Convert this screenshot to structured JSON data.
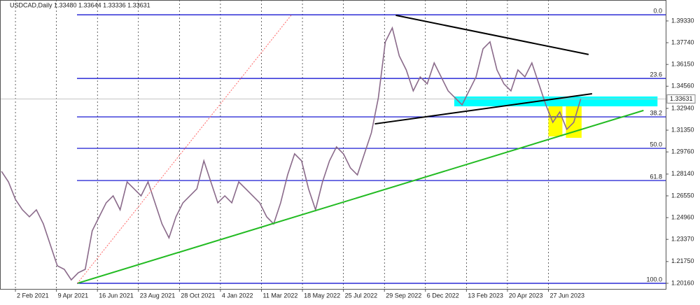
{
  "chart_data": {
    "type": "line",
    "title": "USDCAD,Daily 1.33480 1.33644 1.33336 1.33631",
    "x": [
      -16,
      -8,
      0,
      8,
      16,
      24,
      32,
      40,
      48,
      56,
      64,
      72,
      80,
      88,
      96,
      104,
      112,
      120,
      128,
      136,
      144,
      152,
      160,
      168,
      176,
      184,
      192,
      200,
      208,
      216,
      224,
      232,
      240,
      248,
      256,
      264,
      272,
      280,
      288,
      296,
      304,
      312,
      320,
      328,
      336,
      344,
      352,
      360,
      368,
      376,
      384,
      392,
      400,
      408,
      416,
      424,
      432,
      440,
      448,
      456,
      464,
      472,
      480,
      488,
      496,
      504,
      512,
      520,
      528,
      536,
      544,
      552,
      560,
      568,
      576,
      584,
      592,
      600,
      608,
      616,
      624,
      632,
      640,
      648
    ],
    "series": [
      {
        "name": "USDCAD",
        "color": "#8a6a8a",
        "values": [
          1.2834,
          1.2757,
          1.2629,
          1.2553,
          1.2502,
          1.2553,
          1.245,
          1.2297,
          1.2144,
          1.2118,
          1.2041,
          1.2093,
          1.2118,
          1.2399,
          1.2502,
          1.2604,
          1.2655,
          1.2553,
          1.2757,
          1.2706,
          1.2655,
          1.2757,
          1.2604,
          1.245,
          1.2348,
          1.2502,
          1.2604,
          1.2655,
          1.2706,
          1.2911,
          1.2757,
          1.2604,
          1.2655,
          1.2604,
          1.2757,
          1.2706,
          1.2655,
          1.2604,
          1.2502,
          1.245,
          1.2604,
          1.2808,
          1.2962,
          1.2911,
          1.2706,
          1.2553,
          1.2757,
          1.2911,
          1.3013,
          1.2962,
          1.2859,
          1.2808,
          1.2962,
          1.3115,
          1.3371,
          1.378,
          1.3882,
          1.3677,
          1.3575,
          1.3422,
          1.3524,
          1.3473,
          1.3626,
          1.3524,
          1.3422,
          1.3371,
          1.332,
          1.3422,
          1.3524,
          1.3729,
          1.378,
          1.3575,
          1.3473,
          1.3422,
          1.3575,
          1.3524,
          1.3626,
          1.3473,
          1.332,
          1.3192,
          1.3268,
          1.3141,
          1.3192,
          1.3363
        ]
      }
    ],
    "xlim": [
      -17.7,
      745.4
    ],
    "ylim": [
      1.1975,
      1.4086
    ],
    "xticks": [
      {
        "value": 0,
        "label": "2 Feb 2021"
      },
      {
        "value": 47,
        "label": "9 Apr 2021"
      },
      {
        "value": 94,
        "label": "16 Jun 2021"
      },
      {
        "value": 141,
        "label": "23 Aug 2021"
      },
      {
        "value": 188,
        "label": "28 Oct 2021"
      },
      {
        "value": 235,
        "label": "4 Jan 2022"
      },
      {
        "value": 282,
        "label": "11 Mar 2022"
      },
      {
        "value": 329,
        "label": "18 May 2022"
      },
      {
        "value": 376,
        "label": "25 Jul 2022"
      },
      {
        "value": 423,
        "label": "29 Sep 2022"
      },
      {
        "value": 470,
        "label": "6 Dec 2022"
      },
      {
        "value": 517,
        "label": "13 Feb 2023"
      },
      {
        "value": 564,
        "label": "20 Apr 2023"
      },
      {
        "value": 611,
        "label": "27 Jun 2023"
      }
    ],
    "yticks": [
      {
        "value": 1.3933,
        "label": "1.39330"
      },
      {
        "value": 1.3774,
        "label": "1.37740"
      },
      {
        "value": 1.3615,
        "label": "1.36150"
      },
      {
        "value": 1.3456,
        "label": "1.34560"
      },
      {
        "value": 1.3294,
        "label": "1.32940"
      },
      {
        "value": 1.3135,
        "label": "1.31350"
      },
      {
        "value": 1.2976,
        "label": "1.29760"
      },
      {
        "value": 1.2814,
        "label": "1.28140"
      },
      {
        "value": 1.2655,
        "label": "1.26550"
      },
      {
        "value": 1.2496,
        "label": "1.24960"
      },
      {
        "value": 1.2337,
        "label": "1.23370"
      },
      {
        "value": 1.2175,
        "label": "1.21750"
      },
      {
        "value": 1.2016,
        "label": "1.20160"
      }
    ],
    "current_price": {
      "value": 1.33631,
      "label": "1.33631"
    },
    "fib_levels": [
      {
        "label": "0.0",
        "price": 1.3978
      },
      {
        "label": "23.6",
        "price": 1.3513
      },
      {
        "label": "38.2",
        "price": 1.3232
      },
      {
        "label": "50.0",
        "price": 1.3002
      },
      {
        "label": "61.8",
        "price": 1.2767
      },
      {
        "label": "100.0",
        "price": 1.2016
      }
    ],
    "trend_lines": [
      {
        "color": "#22bb22",
        "x": [
          71,
          720
        ],
        "y": [
          1.2016,
          1.3279
        ]
      },
      {
        "color": "#000000",
        "x": [
          436,
          657
        ],
        "y": [
          1.3974,
          1.3688
        ]
      },
      {
        "color": "#000000",
        "x": [
          412,
          661
        ],
        "y": [
          1.3181,
          1.3401
        ]
      },
      {
        "color": "#ff6666",
        "x": [
          71,
          316
        ],
        "y": [
          1.2016,
          1.3974
        ]
      }
    ],
    "zones": [
      {
        "color": "#00ffff",
        "x": [
          503,
          736
        ],
        "y": [
          1.3309,
          1.3381
        ]
      },
      {
        "color": "#ffff00",
        "x": [
          611,
          627
        ],
        "y": [
          1.3089,
          1.3309
        ]
      },
      {
        "color": "#ffff00",
        "x": [
          631,
          649
        ],
        "y": [
          1.3079,
          1.3309
        ]
      }
    ]
  }
}
